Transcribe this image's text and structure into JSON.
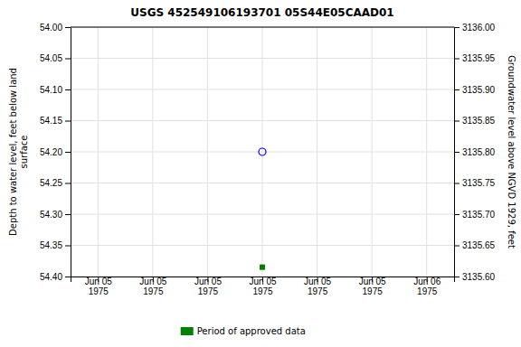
{
  "chart_data": {
    "type": "scatter",
    "title": "USGS 452549106193701 05S44E05CAAD01",
    "y_label": "Depth to water level, feet below land\nsurface",
    "y2_label": "Groundwater level above NGVD 1929, feet",
    "categories": [
      "Jun 05\n1975",
      "Jun 05\n1975",
      "Jun 05\n1975",
      "Jun 05\n1975",
      "Jun 05\n1975",
      "Jun 05\n1975",
      "Jun 06\n1975"
    ],
    "series": [
      {
        "color": "#0000ff",
        "marker": "circle",
        "values": [
          null,
          null,
          null,
          54.2,
          null,
          null,
          null
        ]
      },
      {
        "name": "Period of approved data",
        "color": "#008000",
        "marker": "square",
        "values": [
          null,
          null,
          null,
          54.385,
          null,
          null,
          null
        ]
      }
    ],
    "ylim": [
      54.4,
      54.0
    ],
    "yticks": [
      {
        "value": 54.0,
        "label": "54.00"
      },
      54.05,
      {
        "value": 54.1,
        "label": "54.10"
      },
      54.15,
      {
        "value": 54.2,
        "label": "54.20"
      },
      54.25,
      {
        "value": 54.3,
        "label": "54.30"
      },
      54.35,
      {
        "value": 54.4,
        "label": "54.40"
      }
    ],
    "y2lim": [
      3135.6,
      3136.0
    ],
    "y2ticks": [
      {
        "value": 3136.0,
        "label": "3136.00"
      },
      3135.95,
      {
        "value": 3135.9,
        "label": "3135.90"
      },
      3135.85,
      {
        "value": 3135.8,
        "label": "3135.80"
      },
      3135.75,
      {
        "value": 3135.7,
        "label": "3135.70"
      },
      3135.65,
      {
        "value": 3135.6,
        "label": "3135.60"
      }
    ],
    "grid": true,
    "legend": "bottom"
  }
}
